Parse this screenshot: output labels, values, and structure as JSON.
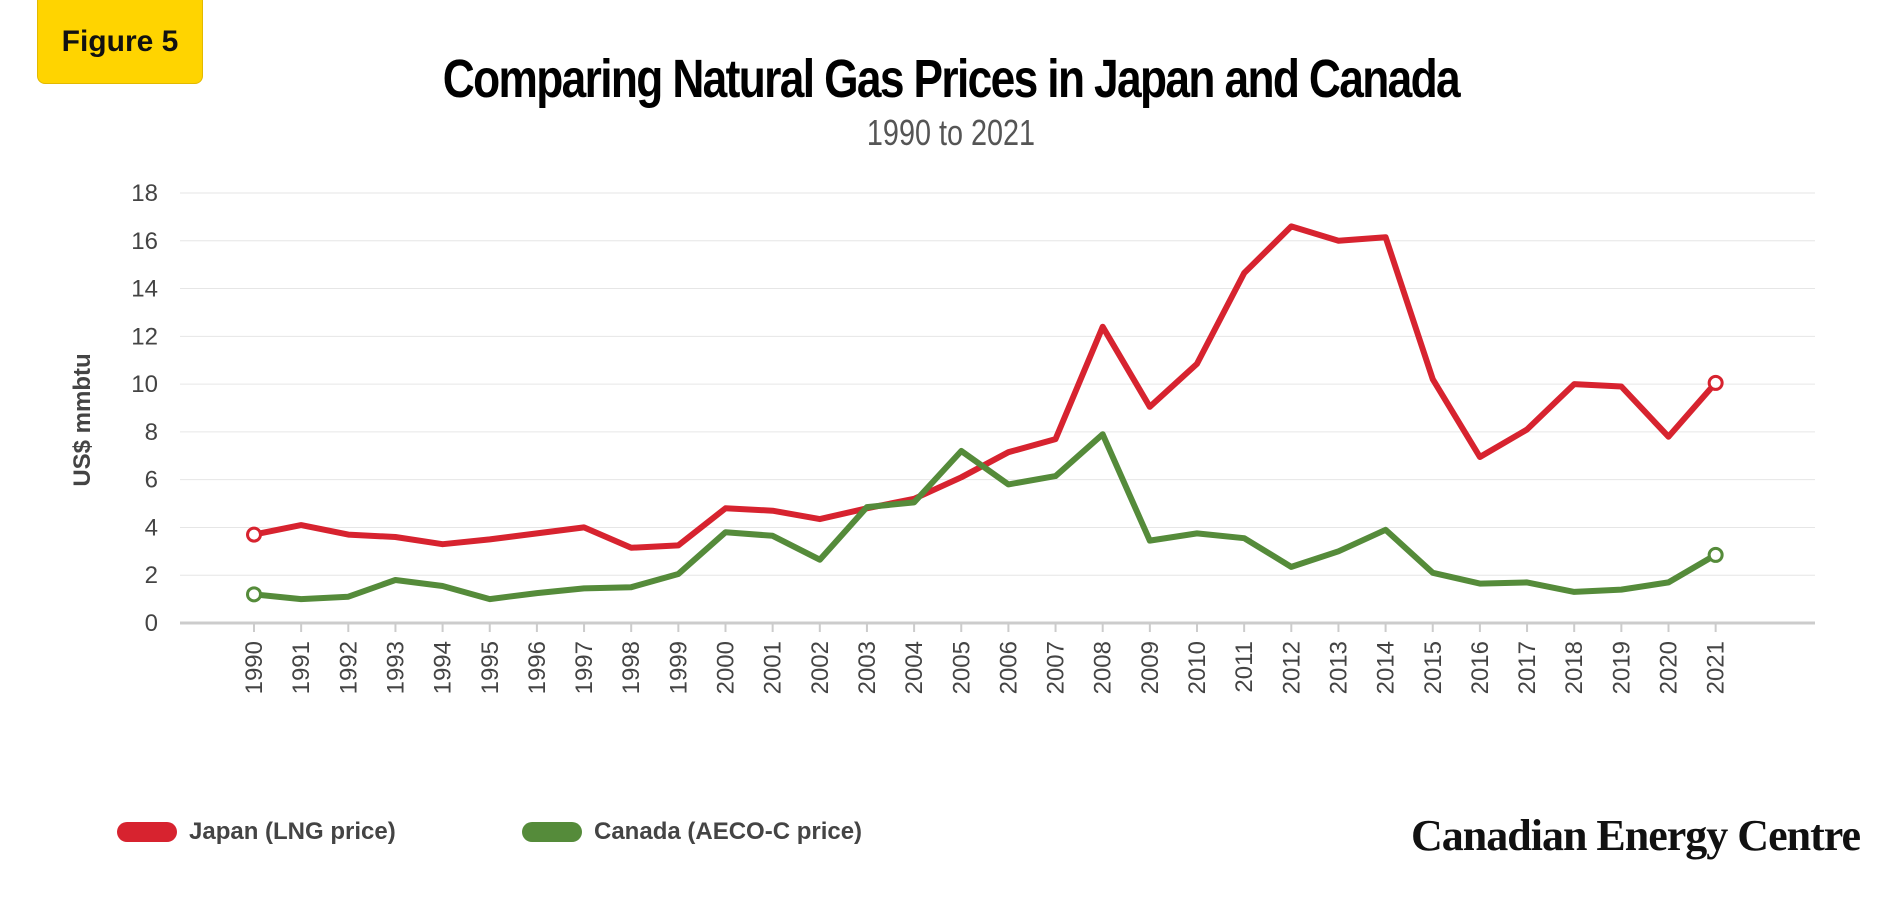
{
  "badge": {
    "label": "Figure 5",
    "color": "#ffd400"
  },
  "brand": {
    "text": "Canadian Energy Centre"
  },
  "legend": [
    {
      "label": "Japan (LNG price)",
      "color": "#d7232f"
    },
    {
      "label": "Canada (AECO-C price)",
      "color": "#558b3a"
    }
  ],
  "chart_data": {
    "type": "line",
    "title": "Comparing Natural Gas Prices in Japan and Canada",
    "subtitle": "1990 to 2021",
    "xlabel": "",
    "ylabel": "US$ mmbtu",
    "ylim": [
      0,
      18
    ],
    "yticks": [
      0,
      2,
      4,
      6,
      8,
      10,
      12,
      14,
      16,
      18
    ],
    "grid": true,
    "legend_position": "bottom-left",
    "x": [
      "1990",
      "1991",
      "1992",
      "1993",
      "1994",
      "1995",
      "1996",
      "1997",
      "1998",
      "1999",
      "2000",
      "2001",
      "2002",
      "2003",
      "2004",
      "2005",
      "2006",
      "2007",
      "2008",
      "2009",
      "2010",
      "2011",
      "2012",
      "2013",
      "2014",
      "2015",
      "2016",
      "2017",
      "2018",
      "2019",
      "2020",
      "2021"
    ],
    "series": [
      {
        "name": "Japan (LNG price)",
        "color": "#d7232f",
        "values": [
          3.7,
          4.1,
          3.7,
          3.6,
          3.3,
          3.5,
          3.75,
          4.0,
          3.15,
          3.25,
          4.8,
          4.7,
          4.35,
          4.8,
          5.2,
          6.1,
          7.15,
          7.7,
          12.4,
          9.05,
          10.85,
          14.65,
          16.6,
          16.0,
          16.15,
          10.2,
          6.95,
          8.1,
          10.0,
          9.9,
          7.8,
          10.05
        ]
      },
      {
        "name": "Canada (AECO-C price)",
        "color": "#558b3a",
        "values": [
          1.2,
          1.0,
          1.1,
          1.8,
          1.55,
          1.0,
          1.25,
          1.45,
          1.5,
          2.05,
          3.8,
          3.65,
          2.65,
          4.85,
          5.05,
          7.2,
          5.8,
          6.15,
          7.9,
          3.45,
          3.75,
          3.55,
          2.35,
          3.0,
          3.9,
          2.1,
          1.65,
          1.7,
          1.3,
          1.4,
          1.7,
          2.85
        ]
      }
    ]
  }
}
